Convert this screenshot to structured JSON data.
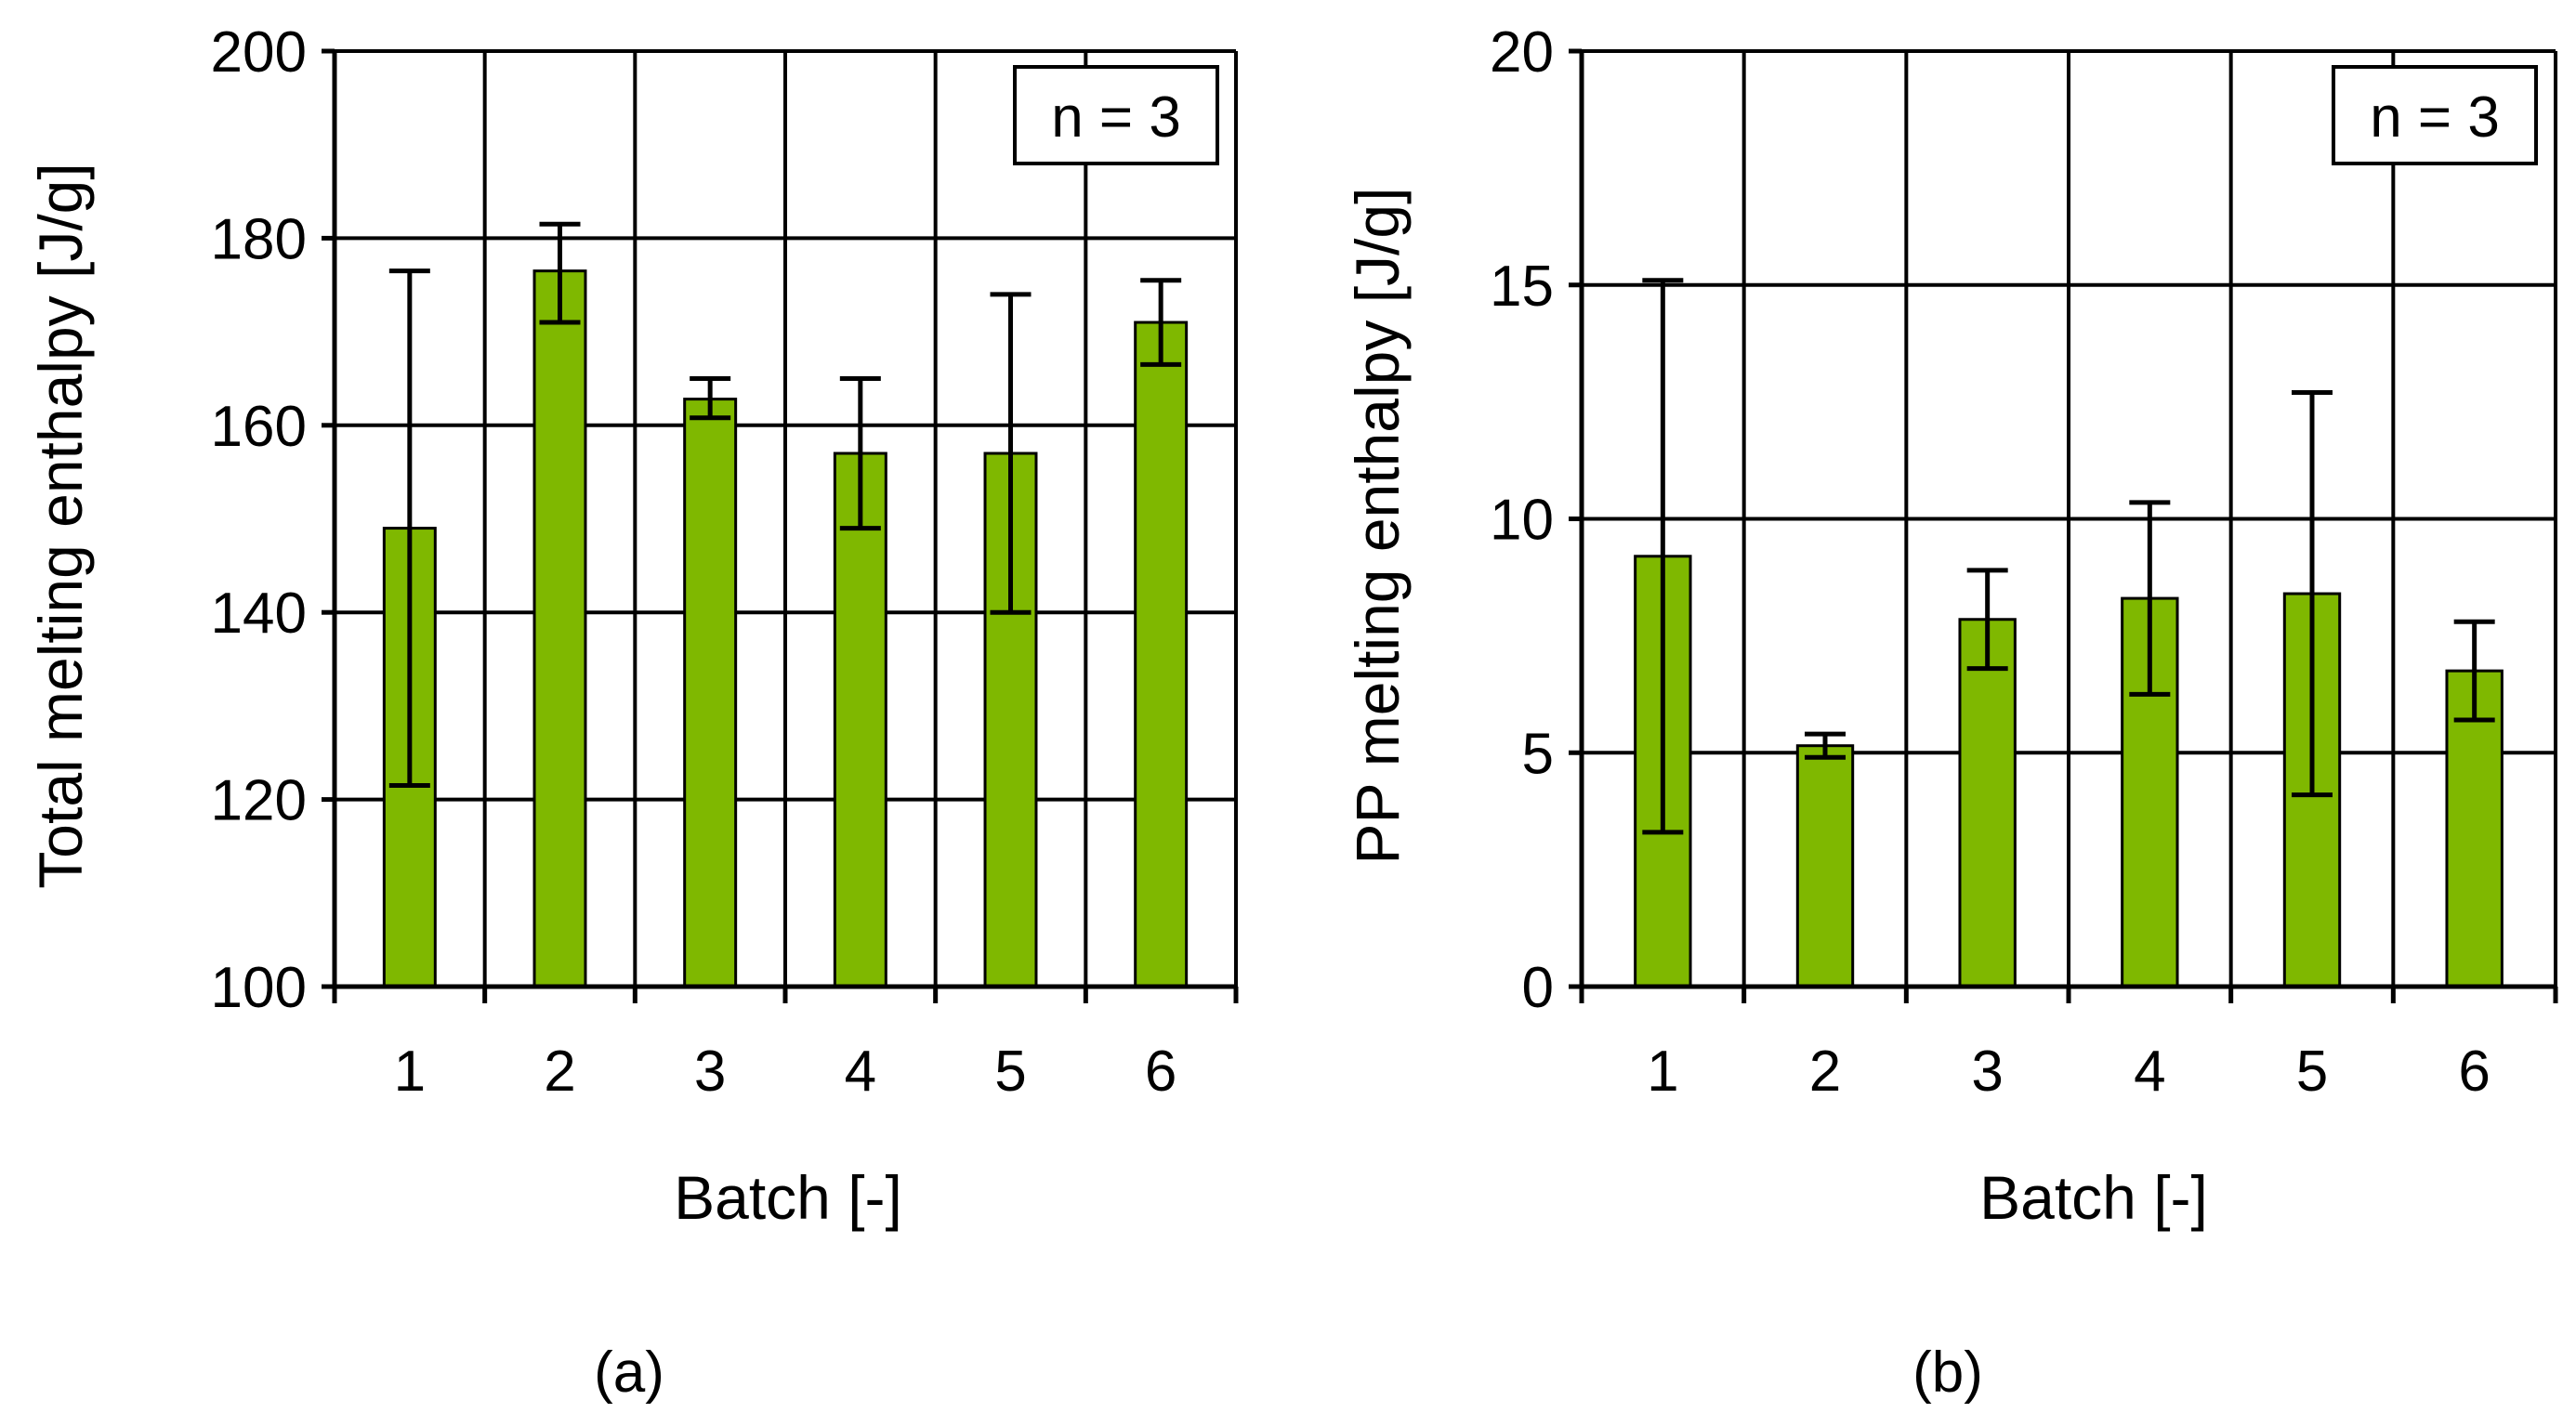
{
  "colors": {
    "bar_fill": "#7fb800",
    "bar_stroke": "#000000",
    "grid": "#000000",
    "background": "#ffffff"
  },
  "chart_data": [
    {
      "id": "a",
      "type": "bar",
      "panel_label": "(a)",
      "title": "",
      "xlabel": "Batch   [-]",
      "ylabel": "Total melting enthalpy   [J/g]",
      "annotation": "n = 3",
      "categories": [
        "1",
        "2",
        "3",
        "4",
        "5",
        "6"
      ],
      "values": [
        149,
        176.5,
        162.8,
        157,
        157,
        171
      ],
      "error_low": [
        121.5,
        171,
        160.8,
        149,
        140,
        166.5
      ],
      "error_high": [
        176.5,
        181.5,
        165,
        165,
        174,
        175.5
      ],
      "ylim": [
        100,
        200
      ],
      "yticks": [
        100,
        120,
        140,
        160,
        180,
        200
      ],
      "ytick_labels": [
        "100",
        "120",
        "140",
        "160",
        "180",
        "200"
      ],
      "grid": true
    },
    {
      "id": "b",
      "type": "bar",
      "panel_label": "(b)",
      "title": "",
      "xlabel": "Batch   [-]",
      "ylabel": "PP melting enthalpy   [J/g]",
      "annotation": "n = 3",
      "categories": [
        "1",
        "2",
        "3",
        "4",
        "5",
        "6"
      ],
      "values": [
        9.2,
        5.15,
        7.85,
        8.3,
        8.4,
        6.75
      ],
      "error_low": [
        3.3,
        4.9,
        6.8,
        6.25,
        4.1,
        5.7
      ],
      "error_high": [
        15.1,
        5.4,
        8.9,
        10.35,
        12.7,
        7.8
      ],
      "ylim": [
        0,
        20
      ],
      "yticks": [
        0,
        5,
        10,
        15,
        20
      ],
      "ytick_labels": [
        "0",
        "5",
        "10",
        "15",
        "20"
      ],
      "grid": true
    }
  ]
}
